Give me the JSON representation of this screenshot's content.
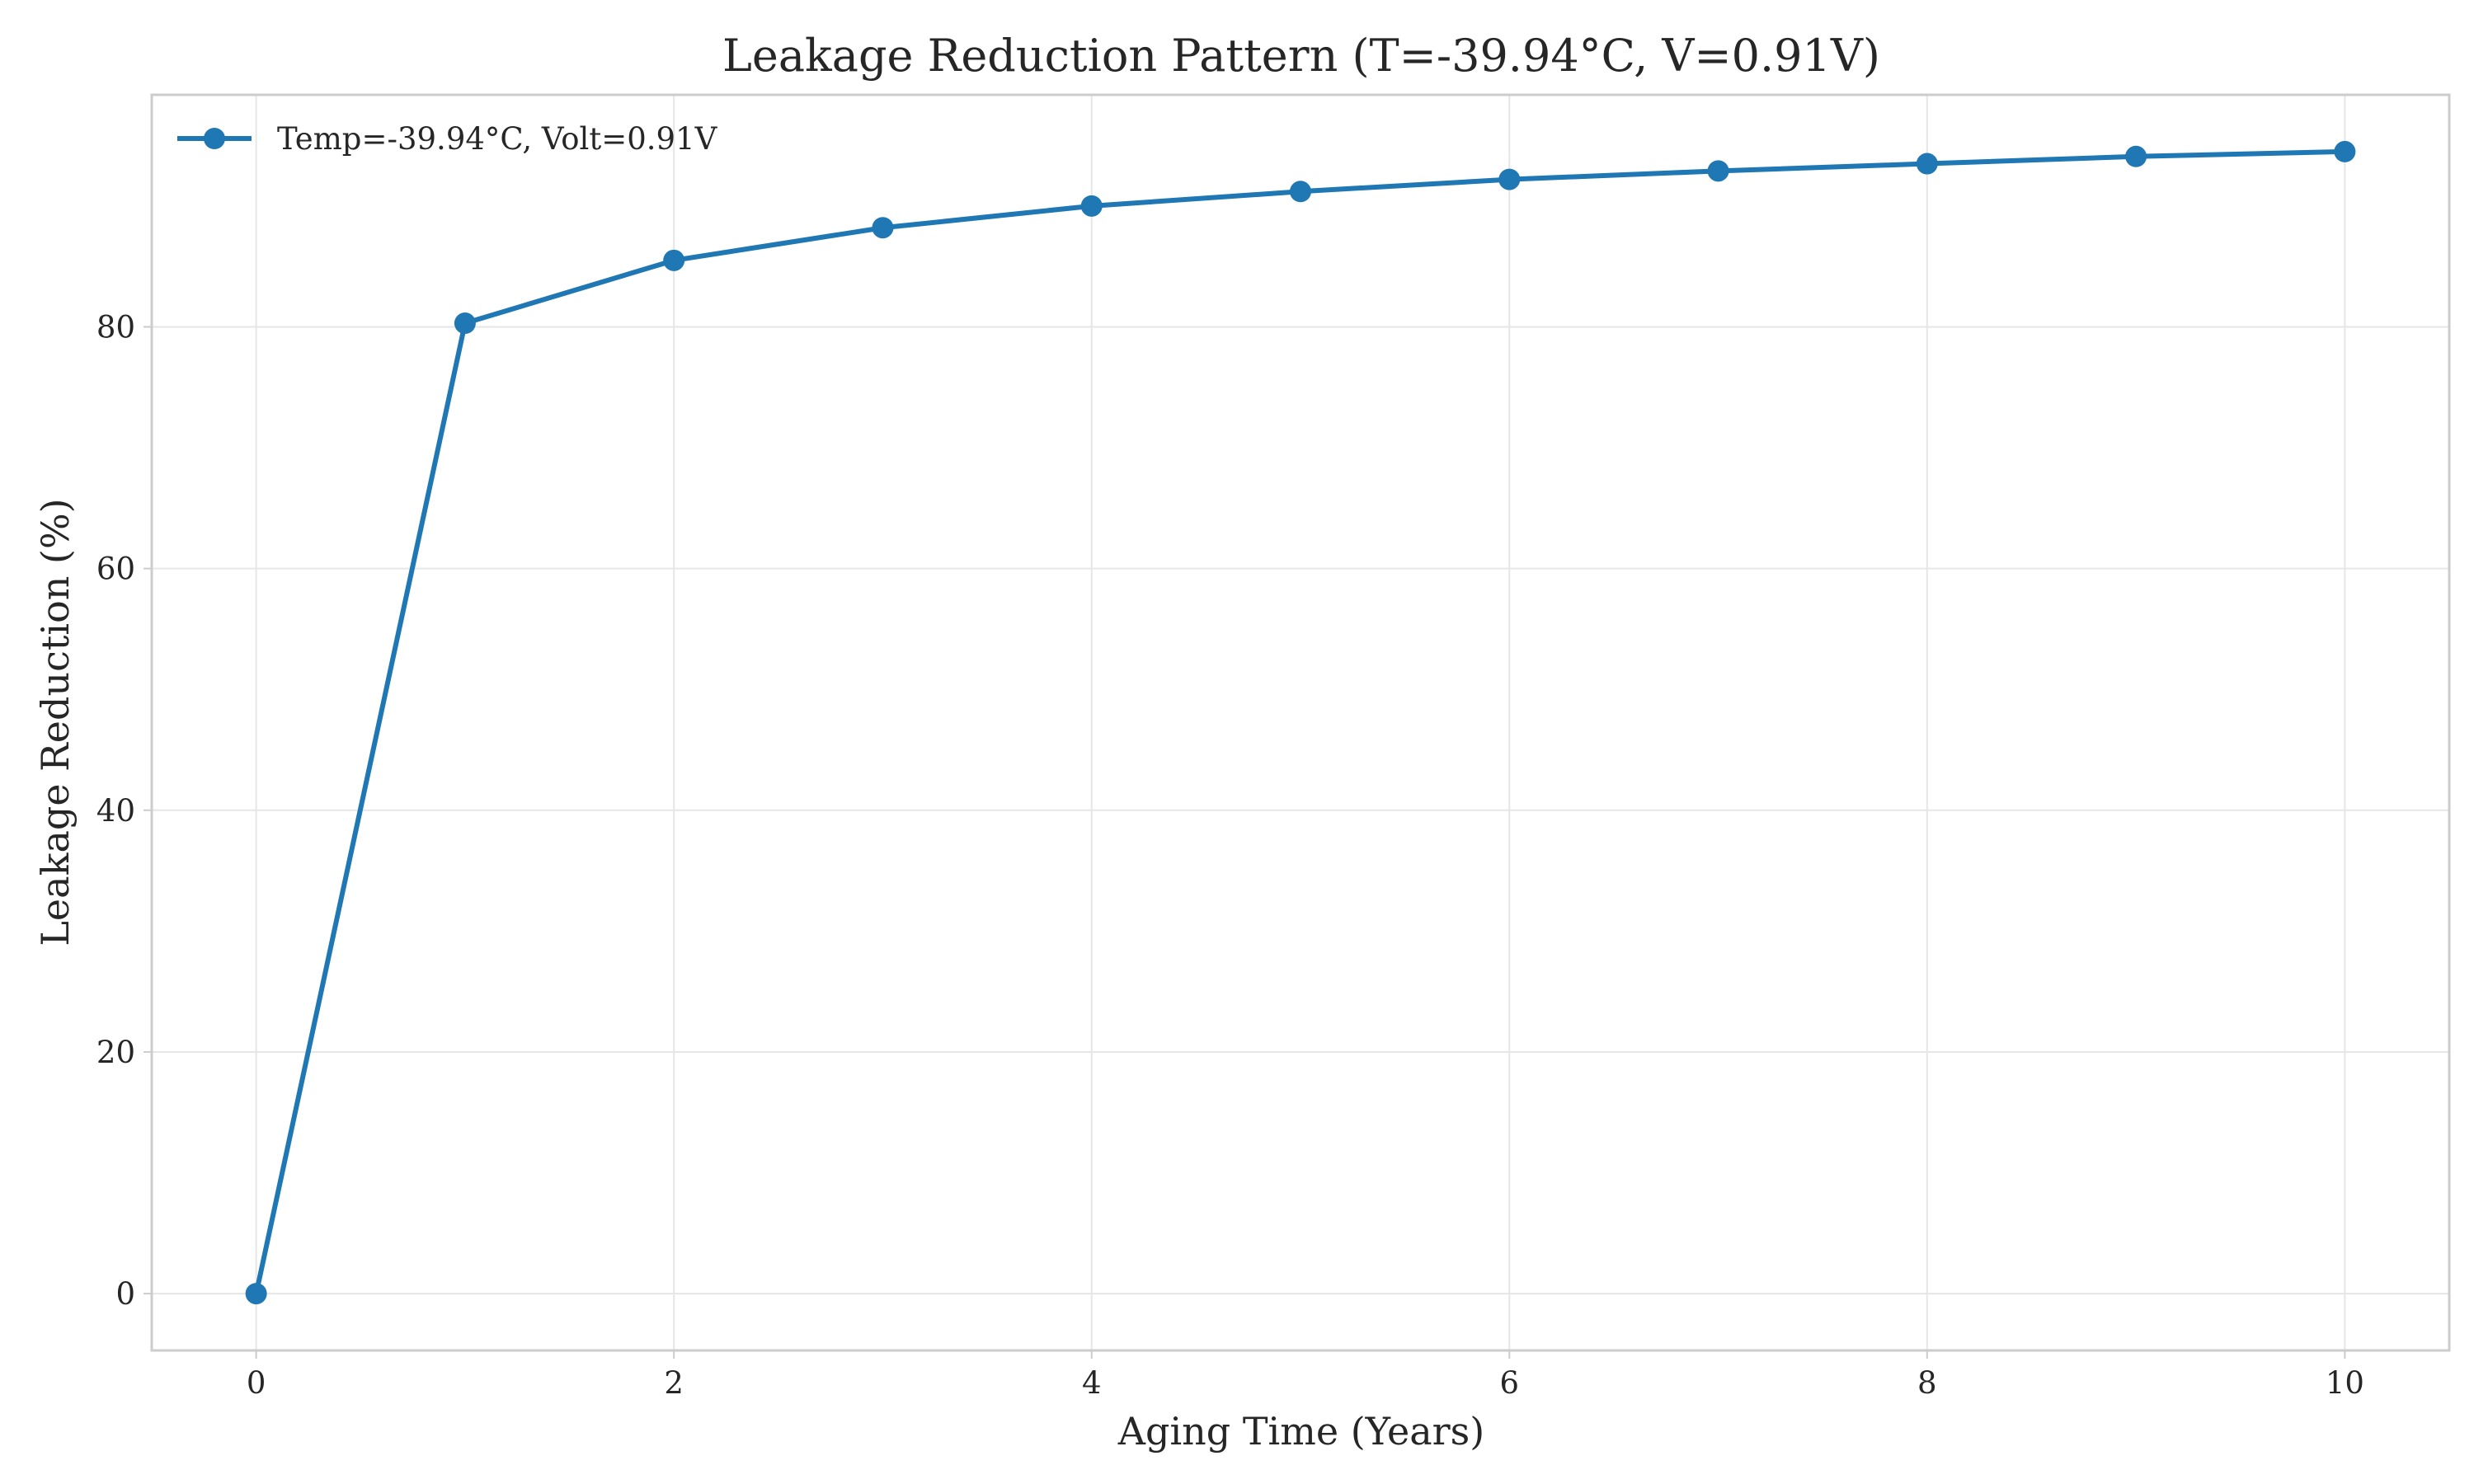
{
  "chart_data": {
    "type": "line",
    "title": "Leakage Reduction Pattern (T=-39.94°C, V=0.91V)",
    "xlabel": "Aging Time (Years)",
    "ylabel": "Leakage Reduction (%)",
    "xlim": [
      -0.5,
      10.5
    ],
    "ylim": [
      -4.7,
      99.2
    ],
    "xticks": [
      0,
      2,
      4,
      6,
      8,
      10
    ],
    "yticks": [
      0,
      20,
      40,
      60,
      80
    ],
    "grid": true,
    "legend_position": "top-left",
    "series": [
      {
        "name": "Temp=-39.94°C, Volt=0.91V",
        "color": "#1f77b4",
        "marker": "circle",
        "x": [
          0,
          1,
          2,
          3,
          4,
          5,
          6,
          7,
          8,
          9,
          10
        ],
        "y": [
          0.0,
          80.3,
          85.5,
          88.2,
          90.0,
          91.2,
          92.2,
          92.9,
          93.5,
          94.1,
          94.5
        ]
      }
    ]
  }
}
